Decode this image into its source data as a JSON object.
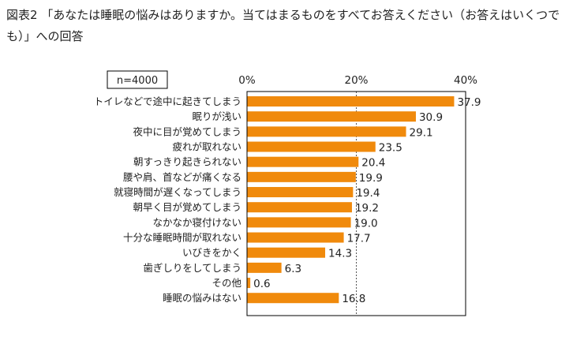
{
  "figure": {
    "title": "図表2 「あなたは睡眠の悩みはありますか。当てはまるものをすべてお答えください（お答えはいくつでも）」への回答"
  },
  "colors": {
    "bar": "#f08a0c",
    "text": "#222222",
    "axis": "#000000",
    "gridline": "#555555"
  },
  "chart_data": {
    "type": "bar",
    "orientation": "horizontal",
    "sample_note": "n=4000",
    "categories": [
      "トイレなどで途中に起きてしまう",
      "眠りが浅い",
      "夜中に目が覚めてしまう",
      "疲れが取れない",
      "朝すっきり起きられない",
      "腰や肩、首などが痛くなる",
      "就寝時間が遅くなってしまう",
      "朝早く目が覚めてしまう",
      "なかなか寝付けない",
      "十分な睡眠時間が取れない",
      "いびきをかく",
      "歯ぎしりをしてしまう",
      "その他",
      "睡眠の悩みはない"
    ],
    "values": [
      37.9,
      30.9,
      29.1,
      23.5,
      20.4,
      19.9,
      19.4,
      19.2,
      19.0,
      17.7,
      14.3,
      6.3,
      0.6,
      16.8
    ],
    "value_labels": [
      "37.9",
      "30.9",
      "29.1",
      "23.5",
      "20.4",
      "19.9",
      "19.4",
      "19.2",
      "19.0",
      "17.7",
      "14.3",
      "6.3",
      "0.6",
      "16.8"
    ],
    "xlim": [
      0,
      40
    ],
    "ticks": [
      0,
      20,
      40
    ],
    "tick_labels": [
      "0%",
      "20%",
      "40%"
    ],
    "grid": "dashed line at 20%"
  }
}
